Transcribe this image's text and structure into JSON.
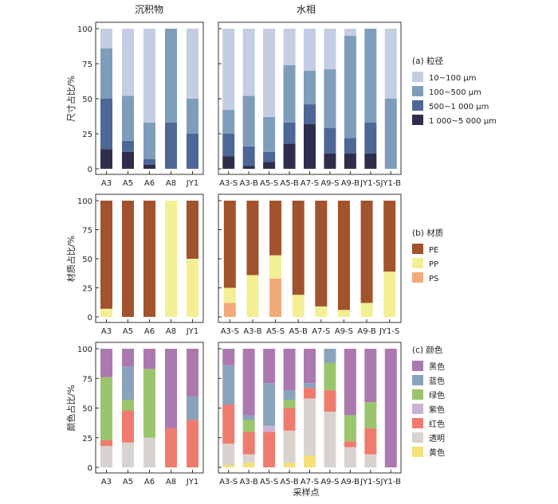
{
  "column_titles": {
    "sediment": "沉积物",
    "water": "水相"
  },
  "x_axis_title": "采样点",
  "colors": {
    "size": [
      "#c5cde2",
      "#7d9dbb",
      "#4d6796",
      "#2f2d4c"
    ],
    "material": [
      "#a0532d",
      "#f3ef94",
      "#f2aa78"
    ],
    "color": [
      "#ab78b0",
      "#8aa3bd",
      "#9bc56d",
      "#c9b3d4",
      "#ee7b6e",
      "#d9d3d0",
      "#f5e07a"
    ]
  },
  "chart_data": [
    {
      "type": "bar",
      "stacked": true,
      "panel": "sediment-size",
      "ylabel": "尺寸占比/%",
      "ylim": [
        0,
        100
      ],
      "yticks": [
        0,
        25,
        50,
        75,
        100
      ],
      "categories": [
        "A3",
        "A5",
        "A6",
        "A8",
        "JY1"
      ],
      "series": [
        {
          "name": "1 000~5 000 μm",
          "values": [
            14,
            12,
            3,
            0,
            0
          ]
        },
        {
          "name": "500~1 000 μm",
          "values": [
            36,
            8,
            4,
            33,
            25
          ]
        },
        {
          "name": "100~500 μm",
          "values": [
            36,
            32,
            26,
            67,
            25
          ]
        },
        {
          "name": "10~100 μm",
          "values": [
            14,
            48,
            67,
            0,
            50
          ]
        }
      ]
    },
    {
      "type": "bar",
      "stacked": true,
      "panel": "water-size",
      "ylim": [
        0,
        100
      ],
      "yticks": [
        0,
        25,
        50,
        75,
        100
      ],
      "categories": [
        "A3-S",
        "A3-B",
        "A5-S",
        "A5-B",
        "A7-S",
        "A9-S",
        "A9-B",
        "JY1-S",
        "JY1-B"
      ],
      "series": [
        {
          "name": "1 000~5 000 μm",
          "values": [
            9,
            2,
            5,
            18,
            32,
            11,
            11,
            11,
            0
          ]
        },
        {
          "name": "500~1 000 μm",
          "values": [
            16,
            14,
            7,
            15,
            14,
            18,
            11,
            22,
            0
          ]
        },
        {
          "name": "100~500 μm",
          "values": [
            17,
            36,
            25,
            41,
            24,
            42,
            73,
            67,
            50
          ]
        },
        {
          "name": "10~100 μm",
          "values": [
            58,
            48,
            63,
            26,
            30,
            29,
            5,
            0,
            50
          ]
        }
      ]
    },
    {
      "type": "bar",
      "stacked": true,
      "panel": "sediment-material",
      "ylabel": "材质占比/%",
      "ylim": [
        0,
        100
      ],
      "yticks": [
        0,
        25,
        50,
        75,
        100
      ],
      "categories": [
        "A3",
        "A5",
        "A6",
        "A8",
        "JY1"
      ],
      "series": [
        {
          "name": "PS",
          "values": [
            0,
            0,
            0,
            0,
            0
          ]
        },
        {
          "name": "PP",
          "values": [
            7,
            0,
            0,
            100,
            50
          ]
        },
        {
          "name": "PE",
          "values": [
            93,
            100,
            100,
            0,
            50
          ]
        }
      ]
    },
    {
      "type": "bar",
      "stacked": true,
      "panel": "water-material",
      "ylim": [
        0,
        100
      ],
      "yticks": [
        0,
        25,
        50,
        75,
        100
      ],
      "categories": [
        "A3-S",
        "A3-B",
        "A5-S",
        "A5-B",
        "A7-S",
        "A9-S",
        "A9-B",
        "JY1-S"
      ],
      "series": [
        {
          "name": "PS",
          "values": [
            12,
            0,
            33,
            0,
            0,
            0,
            0,
            0
          ]
        },
        {
          "name": "PP",
          "values": [
            13,
            36,
            20,
            19,
            9,
            6,
            12,
            39
          ]
        },
        {
          "name": "PE",
          "values": [
            75,
            64,
            47,
            81,
            91,
            94,
            88,
            61
          ]
        }
      ]
    },
    {
      "type": "bar",
      "stacked": true,
      "panel": "sediment-color",
      "ylabel": "颜色占比/%",
      "ylim": [
        0,
        100
      ],
      "yticks": [
        0,
        25,
        50,
        75,
        100
      ],
      "categories": [
        "A3",
        "A5",
        "A6",
        "A8",
        "JY1"
      ],
      "series": [
        {
          "name": "黄色",
          "values": [
            0,
            0,
            0,
            0,
            0
          ]
        },
        {
          "name": "透明",
          "values": [
            18,
            21,
            25,
            0,
            0
          ]
        },
        {
          "name": "红色",
          "values": [
            5,
            27,
            0,
            33,
            40
          ]
        },
        {
          "name": "紫色",
          "values": [
            0,
            0,
            0,
            0,
            0
          ]
        },
        {
          "name": "绿色",
          "values": [
            53,
            9,
            58,
            0,
            0
          ]
        },
        {
          "name": "蓝色",
          "values": [
            0,
            28,
            0,
            0,
            20
          ]
        },
        {
          "name": "黑色",
          "values": [
            24,
            15,
            17,
            67,
            40
          ]
        }
      ]
    },
    {
      "type": "bar",
      "stacked": true,
      "panel": "water-color",
      "ylim": [
        0,
        100
      ],
      "yticks": [
        0,
        25,
        50,
        75,
        100
      ],
      "categories": [
        "A3-S",
        "A3-B",
        "A5-S",
        "A5-B",
        "A7-S",
        "A9-S",
        "A9-B",
        "JY1-S",
        "JY1-B"
      ],
      "series": [
        {
          "name": "黄色",
          "values": [
            2,
            4,
            0,
            4,
            10,
            0,
            0,
            0,
            0
          ]
        },
        {
          "name": "透明",
          "values": [
            18,
            7,
            0,
            27,
            48,
            47,
            17,
            11,
            0
          ]
        },
        {
          "name": "红色",
          "values": [
            33,
            19,
            30,
            19,
            9,
            18,
            5,
            22,
            0
          ]
        },
        {
          "name": "紫色",
          "values": [
            0,
            0,
            5,
            0,
            0,
            0,
            0,
            0,
            0
          ]
        },
        {
          "name": "绿色",
          "values": [
            0,
            10,
            0,
            7,
            0,
            23,
            22,
            22,
            0
          ]
        },
        {
          "name": "蓝色",
          "values": [
            33,
            4,
            36,
            8,
            4,
            12,
            0,
            0,
            0
          ]
        },
        {
          "name": "黑色",
          "values": [
            14,
            56,
            29,
            35,
            29,
            0,
            56,
            45,
            100
          ]
        }
      ]
    }
  ],
  "legends": {
    "size": {
      "title": "(a) 粒径",
      "items": [
        "10~100 μm",
        "100~500 μm",
        "500~1 000 μm",
        "1 000~5 000 μm"
      ]
    },
    "material": {
      "title": "(b) 材质",
      "items": [
        "PE",
        "PP",
        "PS"
      ]
    },
    "color": {
      "title": "(c) 颜色",
      "items": [
        "黑色",
        "蓝色",
        "绿色",
        "紫色",
        "红色",
        "透明",
        "黄色"
      ]
    }
  }
}
